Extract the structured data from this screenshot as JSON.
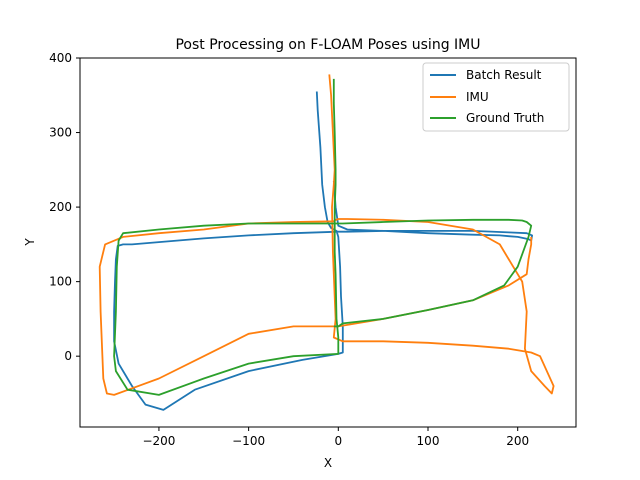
{
  "chart_data": {
    "type": "line",
    "title": "Post Processing on F-LOAM Poses using IMU",
    "xlabel": "X",
    "ylabel": "Y",
    "xlim": [
      -288,
      265
    ],
    "ylim": [
      -95,
      400
    ],
    "xticks": [
      -200,
      -100,
      0,
      100,
      200
    ],
    "xtick_labels": [
      "−200",
      "−100",
      "0",
      "100",
      "200"
    ],
    "yticks": [
      0,
      100,
      200,
      300,
      400
    ],
    "ytick_labels": [
      "0",
      "100",
      "200",
      "300",
      "400"
    ],
    "grid": false,
    "legend_position": "top-right",
    "series": [
      {
        "name": "Batch Result",
        "color": "#1f77b4",
        "x": [
          -24,
          -23,
          -20,
          -18,
          -15,
          -12,
          -8,
          -5,
          -2,
          0,
          2,
          3,
          5,
          5,
          0,
          -40,
          -100,
          -160,
          -195,
          -215,
          -230,
          -245,
          -250,
          -250,
          -249,
          -248,
          -246,
          -240,
          -230,
          -200,
          -150,
          -100,
          -50,
          0,
          10,
          50,
          100,
          150,
          190,
          210,
          216,
          215,
          212,
          200,
          190,
          180,
          150,
          100,
          50,
          10,
          0,
          -3,
          -5
        ],
        "y": [
          355,
          330,
          280,
          230,
          200,
          180,
          172,
          170,
          168,
          160,
          120,
          80,
          40,
          5,
          3,
          -5,
          -20,
          -45,
          -72,
          -65,
          -40,
          -10,
          20,
          60,
          100,
          130,
          148,
          150,
          150,
          153,
          158,
          162,
          165,
          167,
          167,
          168,
          168,
          168,
          166,
          165,
          162,
          155,
          157,
          160,
          161,
          162,
          163,
          165,
          168,
          170,
          175,
          200,
          235
        ]
      },
      {
        "name": "IMU",
        "color": "#ff7f0e",
        "x": [
          -10,
          -8,
          -6,
          -4,
          -5,
          -7,
          -6,
          -5,
          -3,
          -5,
          5,
          50,
          100,
          150,
          190,
          215,
          225,
          240,
          238,
          230,
          215,
          208,
          210,
          205,
          195,
          180,
          150,
          100,
          50,
          10,
          0,
          -2,
          -3,
          -4,
          -5,
          -50,
          -100,
          -150,
          -200,
          -240,
          -260,
          -266,
          -265,
          -263,
          -262,
          -258,
          -250,
          -200,
          -150,
          -100,
          -50,
          0,
          10,
          50,
          100,
          150,
          190,
          210,
          212,
          215,
          215
        ],
        "y": [
          378,
          350,
          300,
          250,
          230,
          200,
          140,
          110,
          50,
          25,
          20,
          20,
          18,
          14,
          10,
          5,
          0,
          -40,
          -50,
          -40,
          -20,
          10,
          60,
          100,
          120,
          150,
          170,
          180,
          183,
          184,
          184,
          183,
          183,
          182,
          181,
          180,
          178,
          170,
          165,
          160,
          150,
          120,
          60,
          0,
          -30,
          -50,
          -52,
          -30,
          0,
          30,
          40,
          40,
          42,
          50,
          62,
          75,
          95,
          110,
          130,
          150,
          160
        ]
      },
      {
        "name": "Ground Truth",
        "color": "#2ca02c",
        "x": [
          -5,
          -5,
          -4,
          -3,
          -3,
          -4,
          -4,
          -3,
          -2,
          0,
          0,
          -50,
          -100,
          -150,
          -200,
          -235,
          -248,
          -250,
          -248,
          -247,
          -245,
          -240,
          -200,
          -150,
          -100,
          -50,
          0,
          5,
          50,
          100,
          150,
          190,
          205,
          210,
          215,
          212,
          200,
          185,
          150,
          100,
          50,
          5,
          0,
          -2,
          -3,
          -4,
          -5
        ],
        "y": [
          372,
          340,
          300,
          250,
          230,
          200,
          140,
          110,
          50,
          25,
          3,
          0,
          -10,
          -30,
          -52,
          -45,
          -20,
          0,
          60,
          120,
          155,
          165,
          170,
          175,
          178,
          178,
          178,
          178,
          180,
          182,
          183,
          183,
          182,
          180,
          175,
          160,
          120,
          95,
          75,
          62,
          50,
          44,
          40,
          40,
          40,
          40,
          40
        ]
      }
    ]
  }
}
